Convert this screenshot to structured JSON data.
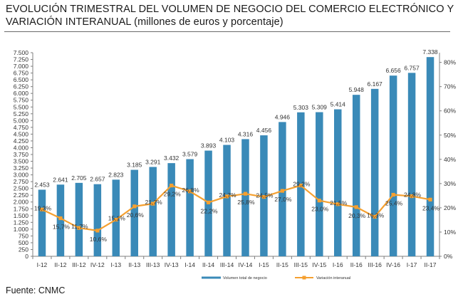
{
  "title": {
    "line1": "EVOLUCIÓN TRIMESTRAL DEL VOLUMEN DE NEGOCIO DEL COMERCIO ELECTRÓNICO Y",
    "line2": "VARIACIÓN INTERANUAL (millones de euros y porcentaje)"
  },
  "source": "Fuente: CNMC",
  "colors": {
    "bar": "#3a8ab8",
    "line": "#f5a030",
    "axis": "#7f7f7f"
  },
  "chart_data": {
    "type": "bar",
    "categories": [
      "I-12",
      "II-12",
      "III-12",
      "IV-12",
      "I-13",
      "II-13",
      "III-13",
      "IV-13",
      "I-14",
      "II-14",
      "III-14",
      "IV-14",
      "I-15",
      "II-15",
      "III-15",
      "IV-15",
      "I-16",
      "II-16",
      "III-16",
      "IV-16",
      "I-17",
      "II-17"
    ],
    "series": [
      {
        "name": "Volumen total de negocio",
        "type": "bar",
        "axis": "left",
        "values": [
          2453,
          2641,
          2705,
          2657,
          2823,
          3185,
          3291,
          3432,
          3579,
          3893,
          4103,
          4316,
          4456,
          4946,
          5303,
          5309,
          5414,
          5948,
          6167,
          6656,
          6757,
          7338
        ],
        "labels": [
          "2.453",
          "2.641",
          "2.705",
          "2.657",
          "2.823",
          "3.185",
          "3.291",
          "3.432",
          "3.579",
          "3.893",
          "4.103",
          "4.316",
          "4.456",
          "4.946",
          "5.303",
          "5.309",
          "5.414",
          "5.948",
          "6.167",
          "6.656",
          "6.757",
          "7.338"
        ]
      },
      {
        "name": "Variación interanual",
        "type": "line",
        "axis": "right",
        "values": [
          19.3,
          15.7,
          11.7,
          10.6,
          15.1,
          20.6,
          21.7,
          29.2,
          26.8,
          22.2,
          24.7,
          25.8,
          24.5,
          27.0,
          29.2,
          23.0,
          21.5,
          20.3,
          16.3,
          25.4,
          24.8,
          23.4
        ],
        "labels": [
          "19,3%",
          "15,7%",
          "11,7%",
          "10,6%",
          "15,1%",
          "20,6%",
          "21,7%",
          "29,2%",
          "26,8%",
          "22,2%",
          "24,7%",
          "25,8%",
          "24,5%",
          "27,0%",
          "29,2%",
          "23,0%",
          "21,5%",
          "20,3%",
          "16,3%",
          "25,4%",
          "24,8%",
          "23,4%"
        ]
      }
    ],
    "y_left": {
      "ylim": [
        0,
        7500
      ],
      "ticks": [
        0,
        250,
        500,
        750,
        1000,
        1250,
        1500,
        1750,
        2000,
        2250,
        2500,
        2750,
        3000,
        3250,
        3500,
        3750,
        4000,
        4250,
        4500,
        4750,
        5000,
        5250,
        5500,
        5750,
        6000,
        6250,
        6500,
        6750,
        7000,
        7250,
        7500
      ],
      "tick_labels": [
        "0",
        "250",
        "500",
        "750",
        "1.000",
        "1.250",
        "1.500",
        "1.750",
        "2.000",
        "2.250",
        "2.500",
        "2.750",
        "3.000",
        "3.250",
        "3.500",
        "3.750",
        "4.000",
        "4.250",
        "4.500",
        "4.750",
        "5.000",
        "5.250",
        "5.500",
        "5.750",
        "6.000",
        "6.250",
        "6.500",
        "6.750",
        "7.000",
        "7.250",
        "7.500"
      ]
    },
    "y_right": {
      "ylim": [
        0,
        84
      ],
      "ticks": [
        0,
        10,
        20,
        30,
        40,
        50,
        60,
        70,
        80
      ],
      "tick_labels": [
        "0%",
        "10%",
        "20%",
        "30%",
        "40%",
        "50%",
        "60%",
        "70%",
        "80%"
      ]
    },
    "grid": false,
    "legend_position": "bottom"
  }
}
